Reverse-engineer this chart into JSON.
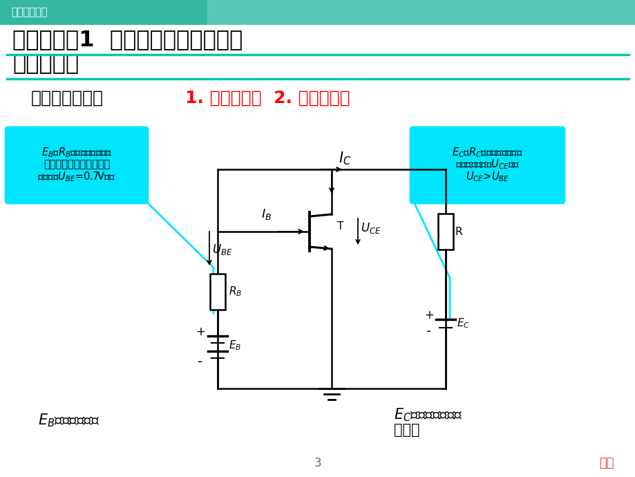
{
  "bg_color": "#ffffff",
  "header_color": "#35b8a0",
  "header_text": "电子技术基础",
  "header_text_color": "#ffffff",
  "title_line1": "能力知识点1  交流电压放大电路的信",
  "title_line2": "号放大过程",
  "title_color": "#000000",
  "underline_color": "#00c8b0",
  "condition_label": "基本放大条件：",
  "condition_red_text": "1. 发射结正偏  2. 集电结反偏",
  "left_box_line1": "E_B和R_B的作用是给晶体管",
  "left_box_line2": "发射结提供适当的正向偏",
  "left_box_line3": "置电压（U_BE=0.7V）。",
  "right_box_line1": "E_C和R_C的作用是给晶体管",
  "right_box_line2": "提供适当的管压U_CE，使",
  "right_box_line3": "U_CE>U_BE",
  "box_bg_color": "#00e5ff",
  "cyan_color": "#00e5ff",
  "circuit_color": "#000000",
  "page_number": "3",
  "return_text": "返回",
  "return_color": "#ff3333",
  "eb_bottom_text": "E_B一般为几伏。",
  "ec_bottom_line1": "E_C一般为几伏到几",
  "ec_bottom_line2": "十伏。"
}
